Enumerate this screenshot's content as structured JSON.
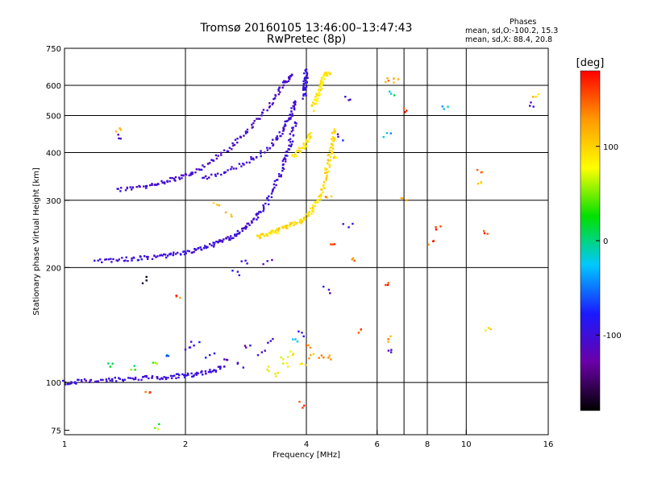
{
  "chart_data": {
    "type": "scatter",
    "title": "Tromsø 20160105 13:46:00–13:47:43",
    "subtitle": "RwPretec (8p)",
    "xlabel": "Frequency [MHz]",
    "ylabel": "Stationary phase Virtual Height [km]",
    "x_scale": "log",
    "y_scale": "log",
    "xlim": [
      1,
      16
    ],
    "ylim": [
      73,
      750
    ],
    "x_ticks": [
      1,
      2,
      4,
      6,
      8,
      10,
      16
    ],
    "x_tick_labels": [
      "1",
      "2",
      "4",
      "6",
      "8",
      "10",
      "16"
    ],
    "x_grid": [
      2,
      4,
      6,
      7,
      8,
      10
    ],
    "y_ticks": [
      75,
      100,
      200,
      300,
      400,
      500,
      600,
      750
    ],
    "y_tick_labels": [
      "75",
      "100",
      "200",
      "300",
      "400",
      "500",
      "600",
      "750"
    ],
    "y_grid": [
      100,
      200,
      300,
      400,
      500,
      600
    ],
    "grid": true,
    "colorbar": {
      "label": "[deg]",
      "min": -180,
      "max": 180,
      "ticks": [
        -100,
        0,
        100
      ],
      "tick_labels": [
        "-100",
        "0",
        "100"
      ],
      "colors": [
        "#000000",
        "#6a00a8",
        "#1a1aff",
        "#00c8ff",
        "#00e000",
        "#ffff00",
        "#ff9900",
        "#ff0000"
      ]
    },
    "stats": {
      "heading": "Phases",
      "line_o": "mean, sd,O:-100.2, 15.3",
      "line_x": "mean, sd,X: 88.4, 20.8"
    },
    "traces": [
      {
        "mode": "O",
        "phase": -105,
        "x": [
          1.35,
          1.45,
          1.55,
          1.65,
          1.75,
          1.85,
          1.95,
          2.05,
          2.15,
          2.3,
          2.45,
          2.6,
          2.75,
          2.9,
          3.05,
          3.2,
          3.35,
          3.45,
          3.55,
          3.6,
          3.68
        ],
        "y": [
          320,
          322,
          325,
          330,
          335,
          340,
          345,
          352,
          360,
          375,
          395,
          415,
          440,
          465,
          495,
          525,
          560,
          590,
          615,
          630,
          640
        ]
      },
      {
        "mode": "O",
        "phase": -100,
        "x": [
          2.2,
          2.4,
          2.6,
          2.8,
          3.0,
          3.2,
          3.35,
          3.45,
          3.55,
          3.62,
          3.68,
          3.72,
          3.75
        ],
        "y": [
          340,
          350,
          362,
          375,
          390,
          410,
          430,
          450,
          470,
          490,
          510,
          530,
          545
        ]
      },
      {
        "mode": "O",
        "phase": -100,
        "x": [
          1.2,
          1.3,
          1.4,
          1.5,
          1.6,
          1.7,
          1.8,
          1.9,
          2.0,
          2.1,
          2.2,
          2.3,
          2.4,
          2.5,
          2.6,
          2.7,
          2.8,
          2.9,
          3.0,
          3.1,
          3.2,
          3.3,
          3.4,
          3.5,
          3.55,
          3.6,
          3.65,
          3.7,
          3.75
        ],
        "y": [
          208,
          209,
          210,
          211,
          212,
          213,
          215,
          217,
          219,
          222,
          225,
          228,
          232,
          236,
          240,
          245,
          252,
          260,
          270,
          282,
          298,
          318,
          340,
          365,
          385,
          405,
          425,
          450,
          480
        ]
      },
      {
        "mode": "O",
        "phase": -95,
        "x": [
          3.95,
          3.96,
          3.97,
          3.98,
          3.99,
          4.0
        ],
        "y": [
          560,
          580,
          600,
          620,
          640,
          660
        ]
      },
      {
        "mode": "X",
        "phase": 95,
        "x": [
          3.0,
          3.1,
          3.2,
          3.3,
          3.4,
          3.5,
          3.6,
          3.7,
          3.8,
          3.9,
          4.0,
          4.1,
          4.2,
          4.3,
          4.38,
          4.45,
          4.5,
          4.55,
          4.6,
          4.63,
          4.66,
          4.7
        ],
        "y": [
          240,
          242,
          244,
          247,
          250,
          253,
          256,
          259,
          262,
          266,
          272,
          280,
          290,
          303,
          320,
          340,
          360,
          380,
          400,
          420,
          440,
          460
        ]
      },
      {
        "mode": "X",
        "phase": 90,
        "x": [
          3.7,
          3.8,
          3.9,
          4.0,
          4.05,
          4.1
        ],
        "y": [
          390,
          400,
          410,
          420,
          435,
          450
        ]
      },
      {
        "mode": "X",
        "phase": 90,
        "x": [
          4.15,
          4.2,
          4.25,
          4.3,
          4.35,
          4.4,
          4.45,
          4.5,
          4.55
        ],
        "y": [
          520,
          540,
          560,
          580,
          600,
          620,
          640,
          645,
          648
        ]
      },
      {
        "mode": "E",
        "phase": -100,
        "x": [
          1.0,
          1.05,
          1.1,
          1.2,
          1.3,
          1.4,
          1.5,
          1.6,
          1.7,
          1.8,
          1.9,
          2.0,
          2.1,
          2.2,
          2.3,
          2.4,
          2.5
        ],
        "y": [
          100,
          100,
          101,
          101,
          102,
          102,
          102,
          103,
          103,
          103,
          104,
          104,
          105,
          106,
          107,
          108,
          110
        ]
      }
    ],
    "scatter": [
      {
        "x": 2.3,
        "y": 118,
        "phase": -100
      },
      {
        "x": 2.5,
        "y": 115,
        "phase": -110
      },
      {
        "x": 2.7,
        "y": 112,
        "phase": -95
      },
      {
        "x": 2.9,
        "y": 125,
        "phase": -100
      },
      {
        "x": 3.1,
        "y": 120,
        "phase": -105
      },
      {
        "x": 3.3,
        "y": 130,
        "phase": -100
      },
      {
        "x": 3.5,
        "y": 115,
        "phase": 90
      },
      {
        "x": 3.7,
        "y": 118,
        "phase": 95
      },
      {
        "x": 3.9,
        "y": 112,
        "phase": 100
      },
      {
        "x": 4.1,
        "y": 118,
        "phase": 120
      },
      {
        "x": 4.3,
        "y": 116,
        "phase": 140
      },
      {
        "x": 4.6,
        "y": 115,
        "phase": 130
      },
      {
        "x": 3.2,
        "y": 108,
        "phase": 100
      },
      {
        "x": 3.4,
        "y": 106,
        "phase": 95
      },
      {
        "x": 3.6,
        "y": 110,
        "phase": 90
      },
      {
        "x": 1.3,
        "y": 110,
        "phase": 20
      },
      {
        "x": 1.5,
        "y": 108,
        "phase": 30
      },
      {
        "x": 1.7,
        "y": 112,
        "phase": 60
      },
      {
        "x": 1.8,
        "y": 118,
        "phase": -40
      },
      {
        "x": 2.0,
        "y": 122,
        "phase": -110
      },
      {
        "x": 2.1,
        "y": 125,
        "phase": -90
      },
      {
        "x": 3.8,
        "y": 128,
        "phase": -20
      },
      {
        "x": 3.9,
        "y": 135,
        "phase": -100
      },
      {
        "x": 4.0,
        "y": 125,
        "phase": 150
      },
      {
        "x": 1.38,
        "y": 458,
        "phase": 110
      },
      {
        "x": 1.38,
        "y": 435,
        "phase": -105
      },
      {
        "x": 1.6,
        "y": 185,
        "phase": -170
      },
      {
        "x": 1.9,
        "y": 168,
        "phase": 150
      },
      {
        "x": 2.7,
        "y": 195,
        "phase": -100
      },
      {
        "x": 2.4,
        "y": 292,
        "phase": 110
      },
      {
        "x": 2.6,
        "y": 275,
        "phase": 100
      },
      {
        "x": 2.85,
        "y": 205,
        "phase": -100
      },
      {
        "x": 3.2,
        "y": 208,
        "phase": -100
      },
      {
        "x": 4.5,
        "y": 305,
        "phase": 120
      },
      {
        "x": 4.6,
        "y": 230,
        "phase": 150
      },
      {
        "x": 4.55,
        "y": 175,
        "phase": -100
      },
      {
        "x": 4.7,
        "y": 390,
        "phase": 100
      },
      {
        "x": 4.8,
        "y": 440,
        "phase": -100
      },
      {
        "x": 5.1,
        "y": 255,
        "phase": -100
      },
      {
        "x": 5.2,
        "y": 210,
        "phase": 130
      },
      {
        "x": 5.0,
        "y": 560,
        "phase": -100
      },
      {
        "x": 5.4,
        "y": 135,
        "phase": 150
      },
      {
        "x": 6.3,
        "y": 612,
        "phase": 120
      },
      {
        "x": 6.6,
        "y": 610,
        "phase": 110
      },
      {
        "x": 6.5,
        "y": 570,
        "phase": -20
      },
      {
        "x": 6.3,
        "y": 180,
        "phase": 160
      },
      {
        "x": 6.4,
        "y": 130,
        "phase": 140
      },
      {
        "x": 6.5,
        "y": 120,
        "phase": -100
      },
      {
        "x": 7.1,
        "y": 515,
        "phase": 170
      },
      {
        "x": 7.1,
        "y": 300,
        "phase": 120
      },
      {
        "x": 8.4,
        "y": 255,
        "phase": 160
      },
      {
        "x": 8.3,
        "y": 235,
        "phase": 150
      },
      {
        "x": 8.8,
        "y": 520,
        "phase": -30
      },
      {
        "x": 10.9,
        "y": 355,
        "phase": 160
      },
      {
        "x": 10.9,
        "y": 335,
        "phase": 110
      },
      {
        "x": 11.3,
        "y": 245,
        "phase": 150
      },
      {
        "x": 11.5,
        "y": 138,
        "phase": 110
      },
      {
        "x": 14.4,
        "y": 530,
        "phase": -110
      },
      {
        "x": 14.9,
        "y": 560,
        "phase": 100
      },
      {
        "x": 3.95,
        "y": 87,
        "phase": 170
      },
      {
        "x": 1.63,
        "y": 94,
        "phase": 150
      },
      {
        "x": 1.68,
        "y": 76,
        "phase": 50
      },
      {
        "x": 6.35,
        "y": 450,
        "phase": -20
      }
    ]
  }
}
